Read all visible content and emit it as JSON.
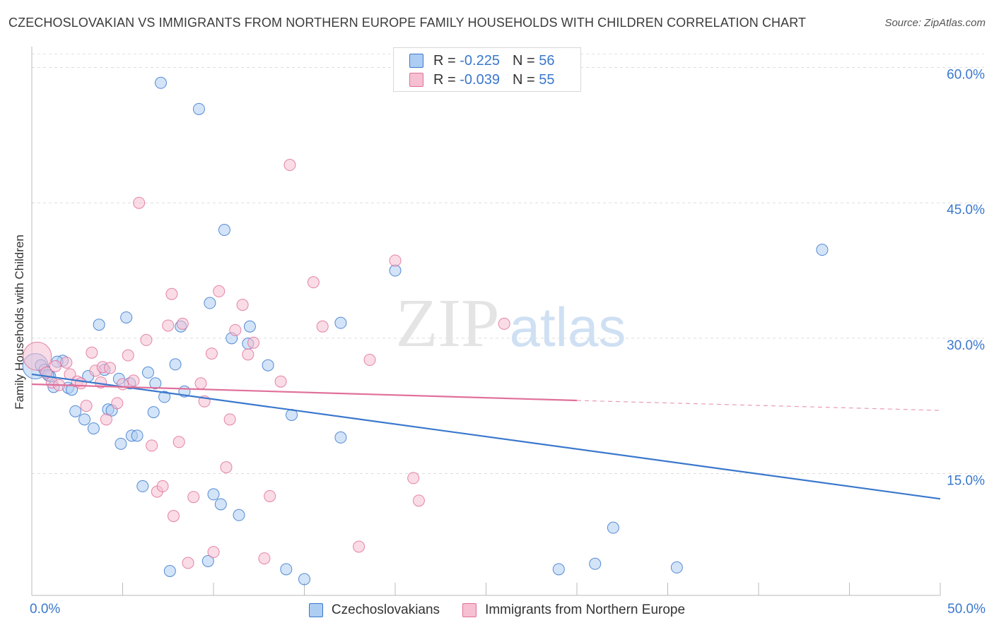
{
  "title": "CZECHOSLOVAKIAN VS IMMIGRANTS FROM NORTHERN EUROPE FAMILY HOUSEHOLDS WITH CHILDREN CORRELATION CHART",
  "source": "Source: ZipAtlas.com",
  "watermark": {
    "zip": "ZIP",
    "atlas": "atlas"
  },
  "legend_top": [
    {
      "r_label": "R =",
      "r_value": "-0.225",
      "n_label": "N =",
      "n_value": "56"
    },
    {
      "r_label": "R =",
      "r_value": "-0.039",
      "n_label": "N =",
      "n_value": "55"
    }
  ],
  "chart_data": {
    "type": "scatter",
    "ylabel": "Family Households with Children",
    "xlabel": "",
    "x_tick_labels": [
      "0.0%",
      "50.0%"
    ],
    "y_tick_labels": [
      "15.0%",
      "30.0%",
      "45.0%",
      "60.0%"
    ],
    "xlim": [
      0,
      50
    ],
    "ylim": [
      1.5,
      62.0
    ],
    "y_ticks": [
      15,
      30,
      45,
      60
    ],
    "x_ticks": [
      0,
      5,
      10,
      15,
      20,
      25,
      30,
      35,
      40,
      45,
      50
    ],
    "grid": "horizontal dashed",
    "legend": "bottom",
    "colors": {
      "blue": "#3a78cc",
      "blue_fill": "#aecdf2",
      "pink": "#e0709a",
      "pink_fill": "#f6bfd2"
    },
    "series": [
      {
        "name": "Czechoslovakians",
        "color": "#3a78cc",
        "fill": "#aecdf2",
        "trend": {
          "x": [
            0,
            50
          ],
          "y": [
            26.0,
            12.2
          ],
          "style": "solid"
        },
        "points": [
          [
            0.2,
            26.9,
            18
          ],
          [
            0.5,
            27.0,
            8
          ],
          [
            0.7,
            26.5,
            8
          ],
          [
            1.0,
            25.8,
            8
          ],
          [
            1.2,
            24.6,
            8
          ],
          [
            1.7,
            27.5,
            8
          ],
          [
            2.0,
            24.5,
            8
          ],
          [
            2.2,
            24.3,
            8
          ],
          [
            2.4,
            21.9,
            8
          ],
          [
            2.9,
            21.0,
            8
          ],
          [
            3.1,
            25.8,
            8
          ],
          [
            3.4,
            20.0,
            8
          ],
          [
            3.7,
            31.5,
            8
          ],
          [
            4.0,
            26.5,
            8
          ],
          [
            4.2,
            22.1,
            8
          ],
          [
            4.4,
            22.0,
            8
          ],
          [
            4.8,
            25.5,
            8
          ],
          [
            4.9,
            18.3,
            8
          ],
          [
            5.2,
            32.3,
            8
          ],
          [
            5.4,
            25.0,
            8
          ],
          [
            5.5,
            19.2,
            8
          ],
          [
            5.8,
            19.2,
            8
          ],
          [
            6.1,
            13.6,
            8
          ],
          [
            6.4,
            26.2,
            8
          ],
          [
            6.7,
            21.8,
            8
          ],
          [
            6.8,
            25.0,
            8
          ],
          [
            7.1,
            58.3,
            8
          ],
          [
            7.3,
            23.5,
            8
          ],
          [
            7.6,
            4.2,
            8
          ],
          [
            7.9,
            27.1,
            8
          ],
          [
            8.2,
            31.3,
            8
          ],
          [
            8.4,
            24.1,
            8
          ],
          [
            9.2,
            55.4,
            8
          ],
          [
            9.7,
            5.3,
            8
          ],
          [
            9.8,
            33.9,
            8
          ],
          [
            10.0,
            12.7,
            8
          ],
          [
            10.4,
            11.6,
            8
          ],
          [
            10.6,
            42.0,
            8
          ],
          [
            11.0,
            30.0,
            8
          ],
          [
            11.4,
            10.4,
            8
          ],
          [
            11.9,
            29.4,
            8
          ],
          [
            12.0,
            31.3,
            8
          ],
          [
            13.0,
            27.0,
            8
          ],
          [
            14.0,
            4.4,
            8
          ],
          [
            14.3,
            21.5,
            8
          ],
          [
            15.0,
            3.3,
            8
          ],
          [
            17.0,
            31.7,
            8
          ],
          [
            17.0,
            19.0,
            8
          ],
          [
            20.0,
            37.5,
            8
          ],
          [
            29.0,
            4.4,
            8
          ],
          [
            31.0,
            5.0,
            8
          ],
          [
            32.0,
            9.0,
            8
          ],
          [
            35.5,
            4.6,
            8
          ],
          [
            43.5,
            39.8,
            8
          ],
          [
            0.9,
            25.9,
            8
          ],
          [
            1.4,
            27.4,
            8
          ]
        ]
      },
      {
        "name": "Immigrants from Northern Europe",
        "color": "#e0709a",
        "fill": "#f6bfd2",
        "trend": {
          "x": [
            0,
            30
          ],
          "y": [
            24.9,
            23.1
          ],
          "style": "solid",
          "ext_x": [
            30,
            50
          ],
          "ext_y": [
            23.1,
            22.0
          ],
          "ext_style": "dashed"
        },
        "points": [
          [
            0.3,
            28.0,
            20
          ],
          [
            0.8,
            26.2,
            8
          ],
          [
            1.1,
            25.1,
            8
          ],
          [
            1.5,
            24.8,
            8
          ],
          [
            1.9,
            27.3,
            8
          ],
          [
            2.1,
            26.0,
            8
          ],
          [
            2.5,
            25.2,
            8
          ],
          [
            2.7,
            25.0,
            8
          ],
          [
            3.0,
            22.5,
            8
          ],
          [
            3.3,
            28.4,
            8
          ],
          [
            3.5,
            26.4,
            8
          ],
          [
            3.9,
            26.8,
            8
          ],
          [
            4.1,
            21.0,
            8
          ],
          [
            4.3,
            26.7,
            8
          ],
          [
            4.7,
            22.8,
            8
          ],
          [
            5.0,
            24.9,
            8
          ],
          [
            5.3,
            28.1,
            8
          ],
          [
            5.6,
            25.3,
            8
          ],
          [
            5.9,
            45.0,
            8
          ],
          [
            6.3,
            29.8,
            8
          ],
          [
            6.6,
            18.1,
            8
          ],
          [
            6.9,
            13.0,
            8
          ],
          [
            7.2,
            13.6,
            8
          ],
          [
            7.5,
            31.4,
            8
          ],
          [
            7.7,
            34.9,
            8
          ],
          [
            7.8,
            10.3,
            8
          ],
          [
            8.1,
            18.5,
            8
          ],
          [
            8.3,
            31.6,
            8
          ],
          [
            8.6,
            5.1,
            8
          ],
          [
            8.9,
            12.4,
            8
          ],
          [
            9.3,
            25.0,
            8
          ],
          [
            9.5,
            23.0,
            8
          ],
          [
            9.9,
            28.3,
            8
          ],
          [
            10.0,
            6.3,
            8
          ],
          [
            10.3,
            35.2,
            8
          ],
          [
            10.7,
            15.7,
            8
          ],
          [
            10.9,
            21.0,
            8
          ],
          [
            11.2,
            30.9,
            8
          ],
          [
            11.6,
            33.7,
            8
          ],
          [
            11.9,
            28.2,
            8
          ],
          [
            12.2,
            29.5,
            8
          ],
          [
            12.8,
            5.6,
            8
          ],
          [
            13.1,
            12.5,
            8
          ],
          [
            13.7,
            25.2,
            8
          ],
          [
            14.2,
            49.2,
            8
          ],
          [
            15.5,
            36.2,
            8
          ],
          [
            16.0,
            31.3,
            8
          ],
          [
            18.0,
            6.9,
            8
          ],
          [
            18.6,
            27.6,
            8
          ],
          [
            20.0,
            38.6,
            8
          ],
          [
            21.0,
            14.5,
            8
          ],
          [
            21.3,
            12.0,
            8
          ],
          [
            26.0,
            31.6,
            8
          ],
          [
            1.3,
            26.9,
            8
          ],
          [
            3.8,
            25.1,
            8
          ]
        ]
      }
    ]
  }
}
